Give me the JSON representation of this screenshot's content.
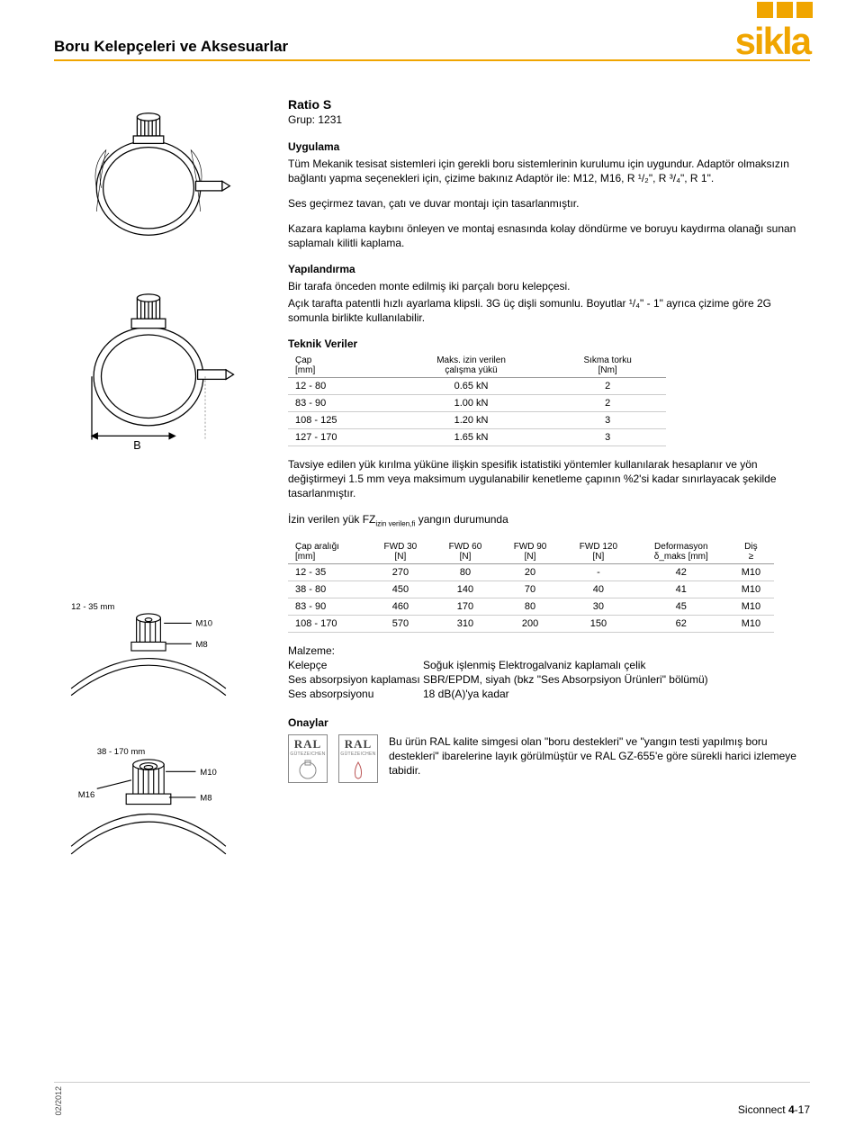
{
  "header": {
    "doc_title": "Boru Kelepçeleri ve Aksesuarlar",
    "logo_text": "sikla",
    "accent_color": "#f0a500"
  },
  "product": {
    "name": "Ratio S",
    "group_label": "Grup: 1231"
  },
  "sections": {
    "application": {
      "heading": "Uygulama",
      "p1": "Tüm Mekanik tesisat sistemleri için gerekli boru sistemlerinin kurulumu için uygundur. Adaptör olmaksızın bağlantı yapma seçenekleri için, çizime bakınız Adaptör ile: M12, M16, R ¹/₂\", R ³/₄\", R 1\".",
      "p2": "Ses geçirmez tavan, çatı ve duvar montajı için tasarlanmıştır.",
      "p3": "Kazara kaplama kaybını önleyen ve montaj esnasında kolay döndürme ve boruyu kaydırma olanağı sunan saplamalı kilitli kaplama."
    },
    "config": {
      "heading": "Yapılandırma",
      "p1": "Bir tarafa önceden monte edilmiş iki parçalı boru kelepçesi.",
      "p2": "Açık tarafta patentli hızlı ayarlama klipsli. 3G üç dişli somunlu. Boyutlar ¹/₄\" - 1\" ayrıca çizime göre 2G somunla birlikte kullanılabilir."
    },
    "technical": {
      "heading": "Teknik Veriler",
      "table1": {
        "cols": [
          {
            "line1": "Çap",
            "line2": "[mm]"
          },
          {
            "line1": "Maks. izin verilen",
            "line2": "çalışma yükü"
          },
          {
            "line1": "Sıkma torku",
            "line2": "[Nm]"
          }
        ],
        "rows": [
          [
            "12 - 80",
            "0.65 kN",
            "2"
          ],
          [
            "83 - 90",
            "1.00 kN",
            "2"
          ],
          [
            "108 - 125",
            "1.20 kN",
            "3"
          ],
          [
            "127 - 170",
            "1.65 kN",
            "3"
          ]
        ]
      },
      "p_after": "Tavsiye edilen yük kırılma yüküne ilişkin spesifik istatistiki yöntemler kullanılarak hesaplanır ve yön değiştirmeyi 1.5 mm veya maksimum uygulanabilir kenetleme çapının %2'si kadar sınırlayacak şekilde tasarlanmıştır.",
      "fire_heading": "İzin verilen yük FZ",
      "fire_heading_sub": "izin verilen,fi",
      "fire_heading_tail": " yangın durumunda",
      "table2": {
        "cols": [
          {
            "line1": "Çap aralığı",
            "line2": "[mm]"
          },
          {
            "line1": "FWD 30",
            "line2": "[N]"
          },
          {
            "line1": "FWD 60",
            "line2": "[N]"
          },
          {
            "line1": "FWD 90",
            "line2": "[N]"
          },
          {
            "line1": "FWD 120",
            "line2": "[N]"
          },
          {
            "line1": "Deformasyon",
            "line2": "δ_maks [mm]"
          },
          {
            "line1": "Diş",
            "line2": "≥"
          }
        ],
        "rows": [
          [
            "12 - 35",
            "270",
            "80",
            "20",
            "-",
            "42",
            "M10"
          ],
          [
            "38 - 80",
            "450",
            "140",
            "70",
            "40",
            "41",
            "M10"
          ],
          [
            "83 - 90",
            "460",
            "170",
            "80",
            "30",
            "45",
            "M10"
          ],
          [
            "108 - 170",
            "570",
            "310",
            "200",
            "150",
            "62",
            "M10"
          ]
        ]
      }
    },
    "material": {
      "heading": "Malzeme:",
      "rows": [
        {
          "label": "Kelepçe",
          "val": "Soğuk işlenmiş Elektrogalvaniz kaplamalı çelik"
        },
        {
          "label": "Ses absorpsiyon kaplaması",
          "val": "SBR/EPDM, siyah (bkz \"Ses Absorpsiyon Ürünleri\" bölümü)"
        },
        {
          "label": "Ses absorpsiyonu",
          "val": "18 dB(A)'ya kadar"
        }
      ]
    },
    "approvals": {
      "heading": "Onaylar",
      "ral_label": "RAL",
      "ral_sub": "GÜTEZEICHEN",
      "text": "Bu ürün RAL kalite simgesi olan \"boru destekleri\" ve \"yangın testi yapılmış boru destekleri\" ibarelerine layık görülmüştür ve RAL GZ-655'e göre sürekli harici izlemeye tabidir."
    }
  },
  "diagrams": {
    "d1_label": "",
    "d2_label": "B",
    "d3_range1": "12 - 35 mm",
    "d3_m10": "M10",
    "d3_m8": "M8",
    "d4_range": "38 - 170 mm",
    "d4_m16": "M16",
    "d4_m10": "M10",
    "d4_m8": "M8"
  },
  "footer": {
    "date": "02/2012",
    "pageref_prefix": "Siconnect ",
    "pageref_bold": "4",
    "pageref_suffix": "-17"
  }
}
